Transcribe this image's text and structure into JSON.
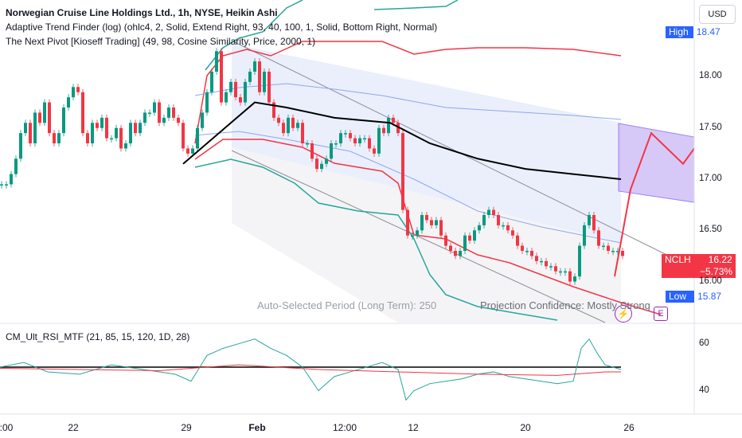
{
  "header": {
    "main": "Norwegian Cruise Line Holdings Ltd., 1h, NYSE, Heikin Ashi",
    "ind1": "Adaptive Trend Finder (log) (ohlc4, 2, Solid, Extend Right, 93, 40, 100, 1, Solid, Bottom Right, Normal)",
    "ind2": "The Next Pivot [Kioseff Trading] (49, 98, Cosine Similarity, Price, 2000, 1)",
    "rsi": "CM_Ult_RSI_MTF (21, 85, 15, 120, 1D, 28)"
  },
  "currency": "USD",
  "tags": {
    "high": {
      "label": "High",
      "value": "18.47",
      "color": "#2962ff"
    },
    "low": {
      "label": "Low",
      "value": "15.87",
      "color": "#2962ff"
    },
    "last": {
      "label": "NCLH",
      "value": "16.22",
      "change": "−5.73%",
      "color": "#f23645"
    }
  },
  "overlay": {
    "period": "Auto-Selected Period (Long Term): 250",
    "confidence": "Projection Confidence: Mostly Strong"
  },
  "icons": [
    "lightning-icon",
    "earnings-icon"
  ],
  "chart_data": [
    {
      "type": "candlestick",
      "title": "Norwegian Cruise Line Holdings Ltd., 1h, NYSE, Heikin Ashi",
      "y_ticks": [
        "16.00",
        "16.50",
        "17.00",
        "17.50",
        "18.00"
      ],
      "ylim": [
        15.6,
        18.75
      ],
      "x_ticks": [
        ":00",
        "22",
        "29",
        "Feb",
        "12:00",
        "12",
        "20",
        "26"
      ],
      "series": [
        {
          "name": "Heikin Ashi",
          "points": [
            [
              0,
              16.95
            ],
            [
              6,
              16.95
            ],
            [
              12,
              17.05
            ],
            [
              18,
              17.2
            ],
            [
              24,
              17.45
            ],
            [
              30,
              17.55
            ],
            [
              36,
              17.35
            ],
            [
              42,
              17.65
            ],
            [
              48,
              17.55
            ],
            [
              54,
              17.75
            ],
            [
              60,
              17.45
            ],
            [
              66,
              17.35
            ],
            [
              72,
              17.45
            ],
            [
              78,
              17.7
            ],
            [
              84,
              17.8
            ],
            [
              90,
              17.9
            ],
            [
              96,
              17.85
            ],
            [
              102,
              17.45
            ],
            [
              108,
              17.35
            ],
            [
              114,
              17.55
            ],
            [
              120,
              17.5
            ],
            [
              126,
              17.6
            ],
            [
              132,
              17.4
            ],
            [
              138,
              17.4
            ],
            [
              144,
              17.5
            ],
            [
              150,
              17.3
            ],
            [
              156,
              17.35
            ],
            [
              162,
              17.55
            ],
            [
              168,
              17.45
            ],
            [
              174,
              17.55
            ],
            [
              180,
              17.65
            ],
            [
              186,
              17.65
            ],
            [
              192,
              17.75
            ],
            [
              198,
              17.55
            ],
            [
              204,
              17.6
            ],
            [
              210,
              17.7
            ],
            [
              216,
              17.6
            ],
            [
              222,
              17.55
            ],
            [
              228,
              17.3
            ],
            [
              234,
              17.25
            ],
            [
              240,
              17.3
            ],
            [
              246,
              17.5
            ],
            [
              252,
              17.65
            ],
            [
              258,
              17.85
            ],
            [
              264,
              18.05
            ],
            [
              270,
              18.25
            ],
            [
              276,
              17.75
            ],
            [
              282,
              17.85
            ],
            [
              288,
              17.95
            ],
            [
              294,
              17.8
            ],
            [
              300,
              17.75
            ],
            [
              306,
              17.95
            ],
            [
              312,
              18.05
            ],
            [
              318,
              18.15
            ],
            [
              324,
              17.85
            ],
            [
              330,
              18.05
            ],
            [
              336,
              17.75
            ],
            [
              342,
              17.6
            ],
            [
              348,
              17.55
            ],
            [
              354,
              17.45
            ],
            [
              360,
              17.6
            ],
            [
              366,
              17.5
            ],
            [
              372,
              17.55
            ],
            [
              378,
              17.35
            ],
            [
              384,
              17.35
            ],
            [
              390,
              17.2
            ],
            [
              396,
              17.1
            ],
            [
              402,
              17.15
            ],
            [
              408,
              17.2
            ],
            [
              414,
              17.35
            ],
            [
              420,
              17.35
            ],
            [
              426,
              17.45
            ],
            [
              432,
              17.45
            ],
            [
              438,
              17.4
            ],
            [
              444,
              17.35
            ],
            [
              450,
              17.4
            ],
            [
              456,
              17.4
            ],
            [
              462,
              17.3
            ],
            [
              468,
              17.25
            ],
            [
              474,
              17.5
            ],
            [
              480,
              17.45
            ],
            [
              486,
              17.6
            ],
            [
              492,
              17.55
            ],
            [
              498,
              17.45
            ],
            [
              504,
              16.7
            ],
            [
              510,
              16.45
            ],
            [
              516,
              16.45
            ],
            [
              522,
              16.5
            ],
            [
              528,
              16.65
            ],
            [
              534,
              16.6
            ],
            [
              540,
              16.55
            ],
            [
              546,
              16.6
            ],
            [
              552,
              16.45
            ],
            [
              558,
              16.35
            ],
            [
              564,
              16.3
            ],
            [
              570,
              16.25
            ],
            [
              576,
              16.3
            ],
            [
              582,
              16.45
            ],
            [
              588,
              16.4
            ],
            [
              594,
              16.5
            ],
            [
              600,
              16.55
            ],
            [
              606,
              16.65
            ],
            [
              612,
              16.7
            ],
            [
              618,
              16.65
            ],
            [
              624,
              16.55
            ],
            [
              630,
              16.55
            ],
            [
              636,
              16.5
            ],
            [
              642,
              16.45
            ],
            [
              648,
              16.35
            ],
            [
              654,
              16.3
            ],
            [
              660,
              16.3
            ],
            [
              666,
              16.25
            ],
            [
              672,
              16.2
            ],
            [
              678,
              16.2
            ],
            [
              684,
              16.15
            ],
            [
              690,
              16.15
            ],
            [
              696,
              16.1
            ],
            [
              702,
              16.1
            ],
            [
              708,
              16.1
            ],
            [
              714,
              16.0
            ],
            [
              720,
              16.05
            ],
            [
              726,
              16.35
            ],
            [
              732,
              16.55
            ],
            [
              738,
              16.65
            ],
            [
              744,
              16.5
            ],
            [
              750,
              16.35
            ],
            [
              756,
              16.35
            ],
            [
              762,
              16.3
            ],
            [
              768,
              16.3
            ],
            [
              774,
              16.3
            ],
            [
              780,
              16.25
            ]
          ]
        },
        {
          "name": "Trend midline",
          "points": [
            [
              230,
              17.15
            ],
            [
              260,
              17.35
            ],
            [
              290,
              17.55
            ],
            [
              320,
              17.75
            ],
            [
              360,
              17.7
            ],
            [
              420,
              17.6
            ],
            [
              490,
              17.55
            ],
            [
              540,
              17.35
            ],
            [
              600,
              17.2
            ],
            [
              660,
              17.1
            ],
            [
              720,
              17.05
            ],
            [
              780,
              17.0
            ]
          ]
        },
        {
          "name": "Projection",
          "points": [
            [
              772,
              16.05
            ],
            [
              792,
              16.9
            ],
            [
              818,
              17.45
            ],
            [
              858,
              17.15
            ],
            [
              872,
              17.3
            ]
          ]
        }
      ]
    },
    {
      "type": "line",
      "title": "CM_Ult_RSI_MTF (21, 85, 15, 120, 1D, 28)",
      "y_ticks": [
        "40",
        "60"
      ],
      "ylim": [
        30,
        68
      ],
      "series": [
        {
          "name": "RSI",
          "points": [
            [
              0,
              50
            ],
            [
              30,
              52
            ],
            [
              60,
              48
            ],
            [
              100,
              47
            ],
            [
              140,
              51
            ],
            [
              180,
              49
            ],
            [
              220,
              47
            ],
            [
              240,
              44
            ],
            [
              260,
              55
            ],
            [
              280,
              58
            ],
            [
              300,
              60
            ],
            [
              320,
              62
            ],
            [
              340,
              58
            ],
            [
              360,
              55
            ],
            [
              380,
              50
            ],
            [
              400,
              40
            ],
            [
              420,
              46
            ],
            [
              440,
              48
            ],
            [
              460,
              50
            ],
            [
              480,
              52
            ],
            [
              500,
              49
            ],
            [
              510,
              36
            ],
            [
              520,
              40
            ],
            [
              540,
              43
            ],
            [
              560,
              44
            ],
            [
              580,
              45
            ],
            [
              600,
              47
            ],
            [
              620,
              48
            ],
            [
              640,
              46
            ],
            [
              660,
              45
            ],
            [
              680,
              44
            ],
            [
              700,
              43
            ],
            [
              720,
              44
            ],
            [
              730,
              58
            ],
            [
              740,
              62
            ],
            [
              750,
              56
            ],
            [
              760,
              51
            ],
            [
              770,
              50
            ],
            [
              780,
              49
            ]
          ]
        },
        {
          "name": "Signal",
          "points": [
            [
              0,
              49.5
            ],
            [
              100,
              49
            ],
            [
              200,
              48.5
            ],
            [
              300,
              51
            ],
            [
              400,
              49
            ],
            [
              500,
              48
            ],
            [
              600,
              47
            ],
            [
              700,
              46.5
            ],
            [
              760,
              48
            ],
            [
              780,
              48
            ]
          ]
        }
      ],
      "reference_lines": [
        50
      ]
    }
  ]
}
